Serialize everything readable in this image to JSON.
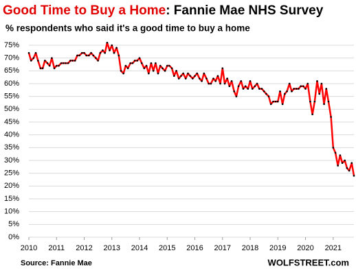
{
  "chart_data": {
    "type": "line",
    "title_highlight": "Good Time to Buy a Home",
    "title_rest": ": Fannie Mae NHS Survey",
    "subtitle": "% respondents who said it's a good time to buy a home",
    "source": "Source: Fannie Mae",
    "brand": "WOLFSTREET.com",
    "xlim": [
      2010,
      2021.75
    ],
    "xticks": [
      2010,
      2011,
      2012,
      2013,
      2014,
      2015,
      2016,
      2017,
      2018,
      2019,
      2020,
      2021
    ],
    "ylim": [
      0,
      75
    ],
    "yticks": [
      {
        "value": 0,
        "label": "0%"
      },
      {
        "value": 5,
        "label": "5%"
      },
      {
        "value": 10,
        "label": "10%"
      },
      {
        "value": 15,
        "label": "15%"
      },
      {
        "value": 20,
        "label": "20%"
      },
      {
        "value": 25,
        "label": "25%"
      },
      {
        "value": 30,
        "label": "30%"
      },
      {
        "value": 35,
        "label": "35%"
      },
      {
        "value": 40,
        "label": "40%"
      },
      {
        "value": 45,
        "label": "45%"
      },
      {
        "value": 50,
        "label": "50%"
      },
      {
        "value": 55,
        "label": "55%"
      },
      {
        "value": 60,
        "label": "60%"
      },
      {
        "value": 65,
        "label": "65%"
      },
      {
        "value": 70,
        "label": "70%"
      },
      {
        "value": 75,
        "label": "75%"
      }
    ],
    "grid": true,
    "line_color": "#ff0000",
    "marker_color": "#000000",
    "x": [
      2010.0,
      2010.08,
      2010.17,
      2010.25,
      2010.33,
      2010.42,
      2010.5,
      2010.58,
      2010.67,
      2010.75,
      2010.83,
      2010.92,
      2011.0,
      2011.08,
      2011.17,
      2011.25,
      2011.33,
      2011.42,
      2011.5,
      2011.58,
      2011.67,
      2011.75,
      2011.83,
      2011.92,
      2012.0,
      2012.08,
      2012.17,
      2012.25,
      2012.33,
      2012.42,
      2012.5,
      2012.58,
      2012.67,
      2012.75,
      2012.83,
      2012.92,
      2013.0,
      2013.08,
      2013.17,
      2013.25,
      2013.33,
      2013.42,
      2013.5,
      2013.58,
      2013.67,
      2013.75,
      2013.83,
      2013.92,
      2014.0,
      2014.08,
      2014.17,
      2014.25,
      2014.33,
      2014.42,
      2014.5,
      2014.58,
      2014.67,
      2014.75,
      2014.83,
      2014.92,
      2015.0,
      2015.08,
      2015.17,
      2015.25,
      2015.33,
      2015.42,
      2015.5,
      2015.58,
      2015.67,
      2015.75,
      2015.83,
      2015.92,
      2016.0,
      2016.08,
      2016.17,
      2016.25,
      2016.33,
      2016.42,
      2016.5,
      2016.58,
      2016.67,
      2016.75,
      2016.83,
      2016.92,
      2017.0,
      2017.08,
      2017.17,
      2017.25,
      2017.33,
      2017.42,
      2017.5,
      2017.58,
      2017.67,
      2017.75,
      2017.83,
      2017.92,
      2018.0,
      2018.08,
      2018.17,
      2018.25,
      2018.33,
      2018.42,
      2018.5,
      2018.58,
      2018.67,
      2018.75,
      2018.83,
      2018.92,
      2019.0,
      2019.08,
      2019.17,
      2019.25,
      2019.33,
      2019.42,
      2019.5,
      2019.58,
      2019.67,
      2019.75,
      2019.83,
      2019.92,
      2020.0,
      2020.08,
      2020.17,
      2020.25,
      2020.33,
      2020.42,
      2020.5,
      2020.58,
      2020.67,
      2020.75,
      2020.83,
      2020.92,
      2021.0,
      2021.08,
      2021.17,
      2021.25,
      2021.33,
      2021.42,
      2021.5,
      2021.58,
      2021.67,
      2021.75
    ],
    "values": [
      72,
      69,
      70,
      72,
      69,
      66,
      66,
      69,
      68,
      67,
      70,
      66,
      67,
      67,
      68,
      68,
      68,
      68,
      69,
      69,
      69,
      71,
      71,
      72,
      72,
      71,
      71,
      72,
      71,
      70,
      69,
      72,
      73,
      72,
      76,
      73,
      75,
      72,
      74,
      71,
      65,
      64,
      67,
      66,
      68,
      68,
      69,
      69,
      70,
      68,
      66,
      67,
      64,
      68,
      65,
      68,
      64,
      67,
      66,
      65,
      67,
      67,
      66,
      63,
      65,
      62,
      63,
      64,
      62,
      64,
      63,
      62,
      63,
      64,
      62,
      61,
      64,
      62,
      60,
      60,
      62,
      61,
      63,
      60,
      66,
      60,
      62,
      59,
      61,
      57,
      55,
      59,
      61,
      58,
      59,
      58,
      61,
      58,
      59,
      60,
      58,
      58,
      57,
      56,
      55,
      52,
      53,
      53,
      53,
      57,
      52,
      56,
      57,
      60,
      57,
      58,
      58,
      58,
      59,
      59,
      58,
      60,
      53,
      48,
      53,
      61,
      56,
      60,
      52,
      58,
      53,
      47,
      35,
      33,
      28,
      32,
      29,
      30,
      27,
      26,
      29,
      24
    ]
  }
}
